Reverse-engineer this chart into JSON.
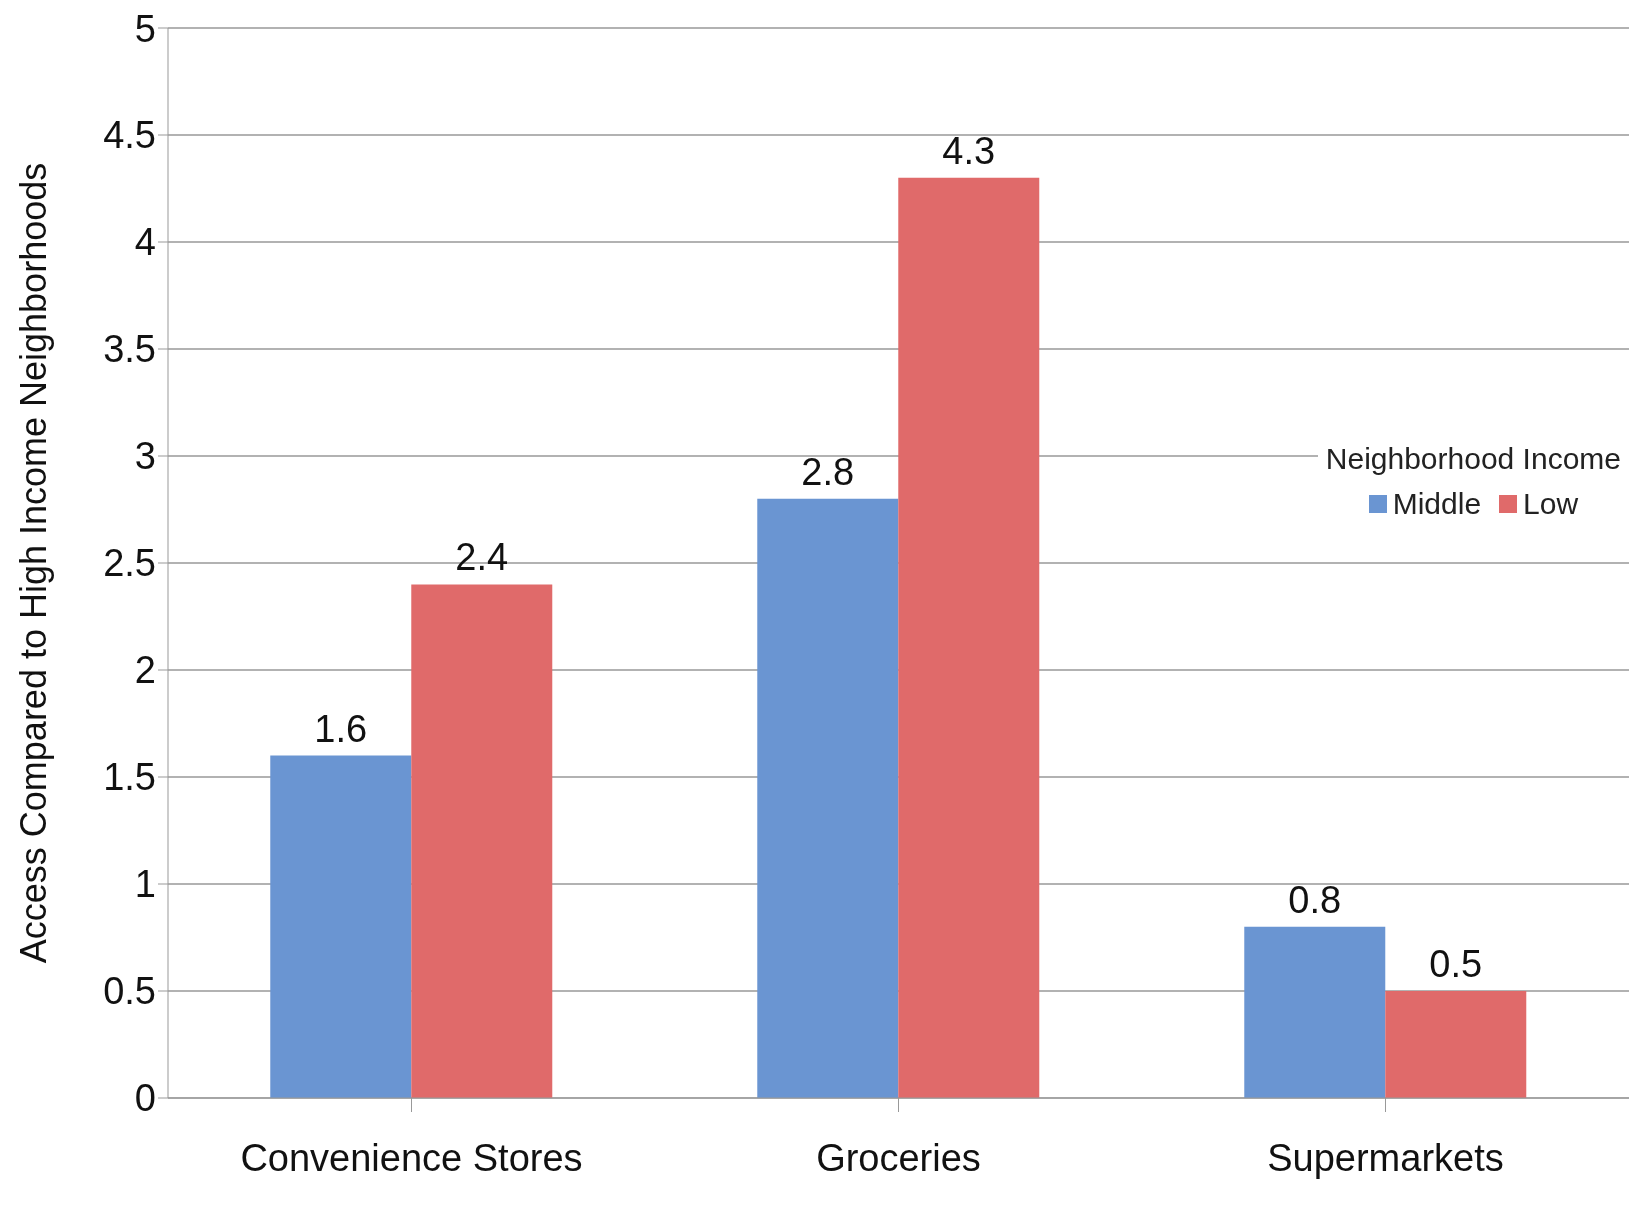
{
  "chart_data": {
    "type": "bar",
    "ylabel": "Access Compared to High Income Neighborhoods",
    "legend_title": "Neighborhood Income",
    "categories": [
      "Convenience Stores",
      "Groceries",
      "Supermarkets"
    ],
    "series": [
      {
        "name": "Middle",
        "color": "#6a95d2",
        "values": [
          1.6,
          2.8,
          0.8
        ]
      },
      {
        "name": "Low",
        "color": "#e06a6a",
        "values": [
          2.4,
          4.3,
          0.5
        ]
      }
    ],
    "ylim": [
      0,
      5
    ],
    "yticks": [
      0,
      0.5,
      1,
      1.5,
      2,
      2.5,
      3,
      3.5,
      4,
      4.5,
      5
    ],
    "grid": "y",
    "legend": "right",
    "data_labels": true
  }
}
